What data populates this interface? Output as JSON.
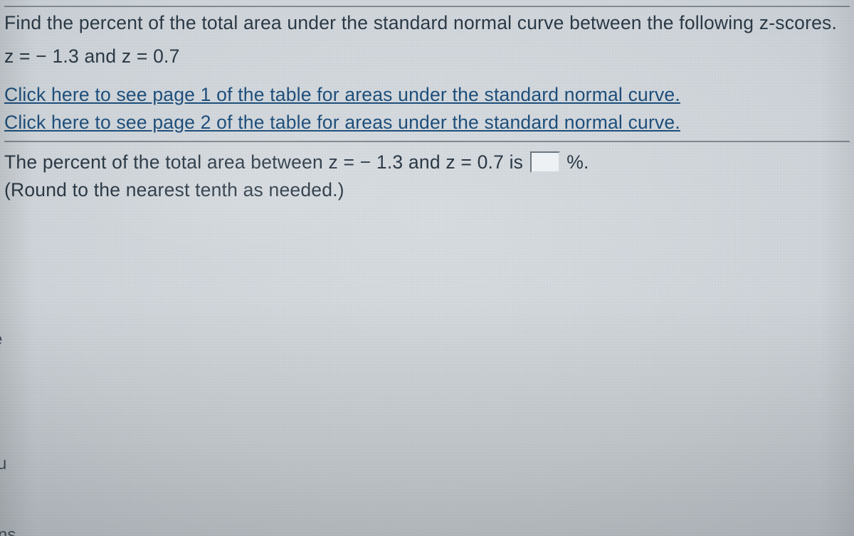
{
  "problem": {
    "prompt": "Find the percent of the total area under the standard normal curve between the following z-scores.",
    "z_line": "z = − 1.3 and z = 0.7",
    "link1": "Click here to see page 1 of the table for areas under the standard normal curve.",
    "link2": "Click here to see page 2 of the table for areas under the standard normal curve.",
    "answer_prefix": "The percent of the total area between z = − 1.3 and z = 0.7 is ",
    "answer_suffix": " %.",
    "round_note": "(Round to the nearest tenth as needed.)",
    "answer_value": ""
  },
  "left_stubs": {
    "e": "e",
    "u": "u",
    "ns": "ns"
  },
  "colors": {
    "text": "#2b3945",
    "link": "#1e4e7a",
    "border": "#80898f",
    "input_bg": "#eef1f4"
  }
}
